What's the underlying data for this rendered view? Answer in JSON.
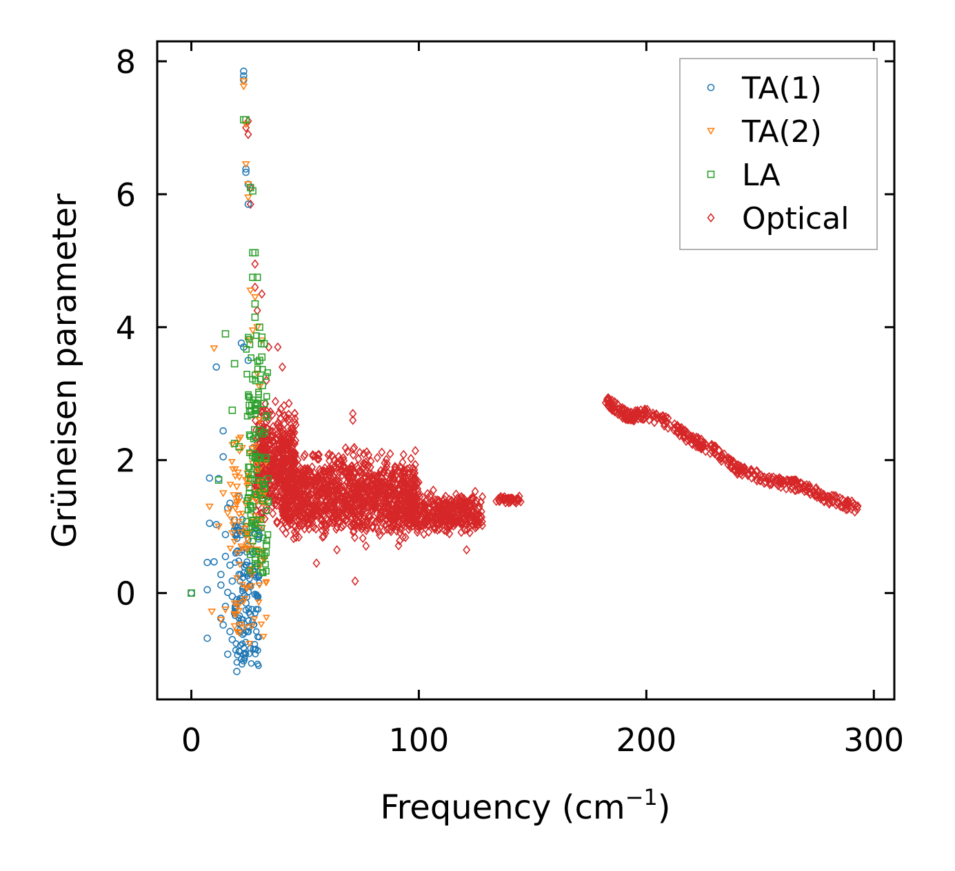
{
  "chart_data": {
    "type": "scatter",
    "xlabel": "Frequency (cm",
    "xlabel_sup": "−1",
    "xlabel_close": ")",
    "ylabel": "Grüneisen parameter",
    "xlim": [
      -15,
      309
    ],
    "ylim": [
      -1.6,
      8.3
    ],
    "xticks": [
      0,
      100,
      200,
      300
    ],
    "yticks": [
      0,
      2,
      4,
      6,
      8
    ],
    "legend_position": "top-right",
    "series": [
      {
        "name": "TA(1)",
        "marker": "circle",
        "color": "#1f77b4",
        "points": [
          [
            0,
            0
          ],
          [
            7,
            -0.68
          ],
          [
            7,
            0.05
          ],
          [
            7,
            0.46
          ],
          [
            8,
            1.05
          ],
          [
            8,
            1.73
          ],
          [
            10,
            0.47
          ],
          [
            11,
            1.03
          ],
          [
            11,
            3.4
          ],
          [
            12,
            1.72
          ],
          [
            13,
            -0.38
          ],
          [
            13,
            0.12
          ],
          [
            13,
            0.28
          ],
          [
            14,
            2.05
          ],
          [
            14,
            2.44
          ],
          [
            14,
            -0.48
          ],
          [
            15,
            0.55
          ],
          [
            15,
            -0.2
          ],
          [
            15,
            0.88
          ],
          [
            16,
            -0.92
          ],
          [
            16,
            1.28
          ],
          [
            16,
            0.01
          ],
          [
            17,
            1.35
          ],
          [
            17,
            0.42
          ],
          [
            17,
            -0.58
          ],
          [
            18,
            -0.7
          ],
          [
            18,
            0.18
          ],
          [
            18,
            -0.05
          ],
          [
            19,
            0.95
          ],
          [
            19,
            -0.3
          ],
          [
            19,
            1.1
          ],
          [
            20,
            -1.18
          ],
          [
            20,
            -0.1
          ],
          [
            20,
            0.62
          ],
          [
            21,
            0.28
          ],
          [
            21,
            -0.88
          ],
          [
            21,
            1.45
          ],
          [
            22,
            3.76
          ],
          [
            22,
            -0.4
          ],
          [
            22,
            0.88
          ],
          [
            23,
            7.85
          ],
          [
            23,
            7.78
          ],
          [
            23,
            7.72
          ],
          [
            23,
            3.7
          ],
          [
            23,
            -1.02
          ],
          [
            23,
            0.3
          ],
          [
            24,
            -0.15
          ],
          [
            24,
            6.38
          ],
          [
            24,
            6.33
          ],
          [
            24,
            0.42
          ],
          [
            25,
            6.15
          ],
          [
            25,
            5.85
          ],
          [
            25,
            3.5
          ],
          [
            25,
            -0.58
          ],
          [
            26,
            -0.32
          ],
          [
            26,
            0.1
          ],
          [
            27,
            0.35
          ],
          [
            27,
            2.18
          ],
          [
            28,
            -0.02
          ],
          [
            28,
            0.64
          ]
        ],
        "cluster": {
          "x_range": [
            19,
            30
          ],
          "y_range": [
            -1.1,
            1.2
          ],
          "count": 140
        }
      },
      {
        "name": "TA(2)",
        "marker": "triangle-down",
        "color": "#ff7f0e",
        "points": [
          [
            8,
            1.3
          ],
          [
            9,
            -0.28
          ],
          [
            10,
            3.68
          ],
          [
            12,
            1.0
          ],
          [
            13,
            -0.4
          ],
          [
            14,
            1.5
          ],
          [
            15,
            -0.25
          ],
          [
            16,
            1.2
          ],
          [
            18,
            0.9
          ],
          [
            19,
            -0.5
          ],
          [
            20,
            1.6
          ],
          [
            21,
            -0.6
          ],
          [
            22,
            0.7
          ],
          [
            23,
            7.7
          ],
          [
            23,
            7.62
          ],
          [
            24,
            7.05
          ],
          [
            24,
            6.45
          ],
          [
            25,
            6.15
          ],
          [
            25,
            5.95
          ],
          [
            26,
            3.8
          ],
          [
            26,
            4.55
          ],
          [
            27,
            3.95
          ],
          [
            28,
            4.45
          ],
          [
            29,
            4.0
          ],
          [
            29,
            3.3
          ],
          [
            30,
            3.1
          ],
          [
            30,
            2.6
          ],
          [
            31,
            3.8
          ],
          [
            27,
            1.95
          ],
          [
            28,
            2.2
          ],
          [
            24,
            1.7
          ],
          [
            31,
            1.1
          ]
        ],
        "cluster": {
          "x_range": [
            17,
            33
          ],
          "y_range": [
            -0.9,
            2.4
          ],
          "count": 110
        }
      },
      {
        "name": "LA",
        "marker": "square",
        "color": "#2ca02c",
        "points": [
          [
            0,
            0
          ],
          [
            12,
            1.7
          ],
          [
            15,
            3.9
          ],
          [
            18,
            2.75
          ],
          [
            19,
            2.25
          ],
          [
            19,
            3.45
          ],
          [
            21,
            2.2
          ],
          [
            23,
            7.12
          ],
          [
            24,
            7.12
          ],
          [
            26,
            6.1
          ],
          [
            27,
            6.05
          ],
          [
            27,
            5.12
          ],
          [
            28,
            5.12
          ],
          [
            27,
            4.75
          ],
          [
            29,
            4.75
          ],
          [
            28,
            4.35
          ],
          [
            28,
            4.15
          ],
          [
            30,
            4.0
          ],
          [
            31,
            3.85
          ],
          [
            31,
            3.55
          ],
          [
            30,
            3.5
          ],
          [
            32,
            3.75
          ],
          [
            32,
            2.85
          ],
          [
            30,
            2.45
          ],
          [
            28,
            2.7
          ],
          [
            29,
            2.85
          ],
          [
            32,
            1.57
          ],
          [
            33,
            0.72
          ],
          [
            31,
            0.5
          ],
          [
            27,
            1.3
          ]
        ],
        "cluster": {
          "x_range": [
            24,
            34
          ],
          "y_range": [
            0.3,
            3.9
          ],
          "count": 120
        }
      },
      {
        "name": "Optical",
        "marker": "diamond",
        "color": "#d62728",
        "points": [
          [
            24,
            7.0
          ],
          [
            25,
            6.9
          ],
          [
            25,
            7.1
          ],
          [
            26,
            6.1
          ],
          [
            26,
            5.85
          ],
          [
            28,
            4.95
          ],
          [
            28,
            4.6
          ],
          [
            29,
            4.25
          ],
          [
            31,
            4.5
          ],
          [
            33,
            3.2
          ],
          [
            34,
            3.7
          ],
          [
            38,
            3.7
          ],
          [
            40,
            3.4
          ],
          [
            71,
            2.7
          ],
          [
            71,
            2.6
          ],
          [
            72,
            0.18
          ],
          [
            55,
            0.45
          ],
          [
            64,
            0.65
          ],
          [
            121,
            0.65
          ],
          [
            136,
            1.45
          ],
          [
            141,
            1.42
          ],
          [
            142,
            1.38
          ]
        ],
        "cluster_bands": [
          {
            "x_range": [
              28,
              46
            ],
            "y_range": [
              0.9,
              3.1
            ],
            "count": 450
          },
          {
            "x_range": [
              40,
              100
            ],
            "y_range": [
              0.6,
              2.3
            ],
            "count": 1200
          },
          {
            "x_range": [
              95,
              128
            ],
            "y_range": [
              0.8,
              1.6
            ],
            "count": 350
          },
          {
            "x_range": [
              134,
              145
            ],
            "y_range": [
              1.3,
              1.5
            ],
            "count": 40
          }
        ],
        "trend": [
          [
            182,
            2.9
          ],
          [
            192,
            2.65
          ],
          [
            200,
            2.7
          ],
          [
            210,
            2.55
          ],
          [
            220,
            2.3
          ],
          [
            230,
            2.15
          ],
          [
            240,
            1.85
          ],
          [
            250,
            1.75
          ],
          [
            260,
            1.65
          ],
          [
            270,
            1.6
          ],
          [
            280,
            1.42
          ],
          [
            293,
            1.28
          ]
        ],
        "trend_count": 400
      }
    ]
  }
}
